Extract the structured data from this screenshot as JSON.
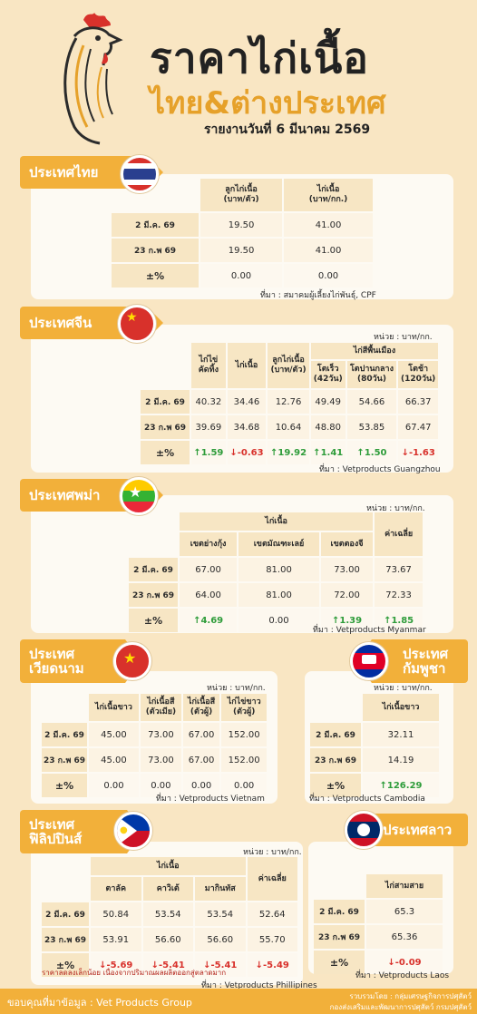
{
  "header": {
    "title": "ราคาไก่เนื้อ",
    "subtitle": "ไทย&ต่างประเทศ",
    "report_date": "รายงานวันที่ 6 มีนาคม 2569"
  },
  "thailand": {
    "tab": "ประเทศไทย",
    "cols": [
      "ลูกไก่เนื้อ\n(บาท/ตัว)",
      "ไก่เนื้อ\n(บาท/กก.)"
    ],
    "rows": [
      {
        "label": "2 มี.ค. 69",
        "vals": [
          "19.50",
          "41.00"
        ]
      },
      {
        "label": "23 ก.พ 69",
        "vals": [
          "19.50",
          "41.00"
        ]
      },
      {
        "label": "±%",
        "vals": [
          "0.00",
          "0.00"
        ]
      }
    ],
    "source": "ที่มา : สมาคมผู้เลี้ยงไก่พันธุ์, CPF"
  },
  "china": {
    "tab": "ประเทศจีน",
    "unit": "หน่วย : บาท/กก.",
    "group": "ไก่สีพื้นเมือง",
    "cols": [
      "ไก่ไข่\nคัดทิ้ง",
      "ไก่เนื้อ",
      "ลูกไก่เนื้อ\n(บาท/ตัว)",
      "โตเร็ว\n(42วัน)",
      "โตปานกลาง\n(80วัน)",
      "โตช้า\n(120วัน)"
    ],
    "rows": [
      {
        "label": "2 มี.ค. 69",
        "vals": [
          "40.32",
          "34.46",
          "12.76",
          "49.49",
          "54.66",
          "66.37"
        ]
      },
      {
        "label": "23 ก.พ 69",
        "vals": [
          "39.69",
          "34.68",
          "10.64",
          "48.80",
          "53.85",
          "67.47"
        ]
      }
    ],
    "pct_label": "±%",
    "pct": [
      {
        "v": "1.59",
        "d": "up"
      },
      {
        "v": "-0.63",
        "d": "dn"
      },
      {
        "v": "19.92",
        "d": "up"
      },
      {
        "v": "1.41",
        "d": "up"
      },
      {
        "v": "1.50",
        "d": "up"
      },
      {
        "v": "-1.63",
        "d": "dn"
      }
    ],
    "source": "ที่มา : Vetproducts Guangzhou"
  },
  "myanmar": {
    "tab": "ประเทศพม่า",
    "unit": "หน่วย : บาท/กก.",
    "group": "ไก่เนื้อ",
    "avg": "ค่าเฉลี่ย",
    "cols": [
      "เขตย่างกุ้ง",
      "เขตมัณฑะเลย์",
      "เขตตองจี"
    ],
    "rows": [
      {
        "label": "2 มี.ค. 69",
        "vals": [
          "67.00",
          "81.00",
          "73.00",
          "73.67"
        ]
      },
      {
        "label": "23 ก.พ 69",
        "vals": [
          "64.00",
          "81.00",
          "72.00",
          "72.33"
        ]
      }
    ],
    "pct_label": "±%",
    "pct": [
      {
        "v": "4.69",
        "d": "up"
      },
      {
        "v": "0.00",
        "d": ""
      },
      {
        "v": "1.39",
        "d": "up"
      },
      {
        "v": "1.85",
        "d": "up"
      }
    ],
    "source": "ที่มา : Vetproducts Myanmar"
  },
  "vietnam": {
    "tab1": "ประเทศ",
    "tab2": "เวียดนาม",
    "unit": "หน่วย : บาท/กก.",
    "cols": [
      "ไก่เนื้อขาว",
      "ไก่เนื้อสี\n(ตัวเมีย)",
      "ไก่เนื้อสี\n(ตัวผู้)",
      "ไก่ไข่ขาว\n(ตัวผู้)"
    ],
    "rows": [
      {
        "label": "2 มี.ค. 69",
        "vals": [
          "45.00",
          "73.00",
          "67.00",
          "152.00"
        ]
      },
      {
        "label": "23 ก.พ 69",
        "vals": [
          "45.00",
          "73.00",
          "67.00",
          "152.00"
        ]
      },
      {
        "label": "±%",
        "vals": [
          "0.00",
          "0.00",
          "0.00",
          "0.00"
        ]
      }
    ],
    "source": "ที่มา : Vetproducts Vietnam"
  },
  "cambodia": {
    "tab1": "ประเทศ",
    "tab2": "กัมพูชา",
    "unit": "หน่วย : บาท/กก.",
    "col": "ไก่เนื้อขาว",
    "rows": [
      {
        "label": "2 มี.ค. 69",
        "val": "32.11"
      },
      {
        "label": "23 ก.พ 69",
        "val": "14.19"
      }
    ],
    "pct_label": "±%",
    "pct": "126.29",
    "source": "ที่มา : Vetproducts Cambodia"
  },
  "philippines": {
    "tab1": "ประเทศ",
    "tab2": "ฟิลิปปินส์",
    "unit": "หน่วย : บาท/กก.",
    "group": "ไก่เนื้อ",
    "avg": "ค่าเฉลี่ย",
    "cols": [
      "ตาลัค",
      "คาวิเต้",
      "มากินทัส"
    ],
    "rows": [
      {
        "label": "2 มี.ค. 69",
        "vals": [
          "50.84",
          "53.54",
          "53.54",
          "52.64"
        ]
      },
      {
        "label": "23 ก.พ 69",
        "vals": [
          "53.91",
          "56.60",
          "56.60",
          "55.70"
        ]
      }
    ],
    "pct_label": "±%",
    "pct": [
      "-5.69",
      "-5.41",
      "-5.41",
      "-5.49"
    ],
    "note": "ราคาลดลงเล็กน้อย เนื่องจากปริมาณผลผลิตออกสู่ตลาดมาก",
    "source": "ที่มา : Vetproducts Phillipines"
  },
  "laos": {
    "tab": "ประเทศลาว",
    "col": "ไก่สามสาย",
    "rows": [
      {
        "label": "2 มี.ค. 69",
        "val": "65.3"
      },
      {
        "label": "23 ก.พ 69",
        "val": "65.36"
      }
    ],
    "pct_label": "±%",
    "pct": "-0.09",
    "source": "ที่มา : Vetproducts Laos"
  },
  "footer": {
    "thanks": "ขอบคุณที่มาข้อมูล :  Vet Products Group",
    "credit1": "รวบรวมโดย : กลุ่มเศรษฐกิจการปศุสัตว์",
    "credit2": "กองส่งเสริมและพัฒนาการปศุสัตว์ กรมปศุสัตว์"
  }
}
